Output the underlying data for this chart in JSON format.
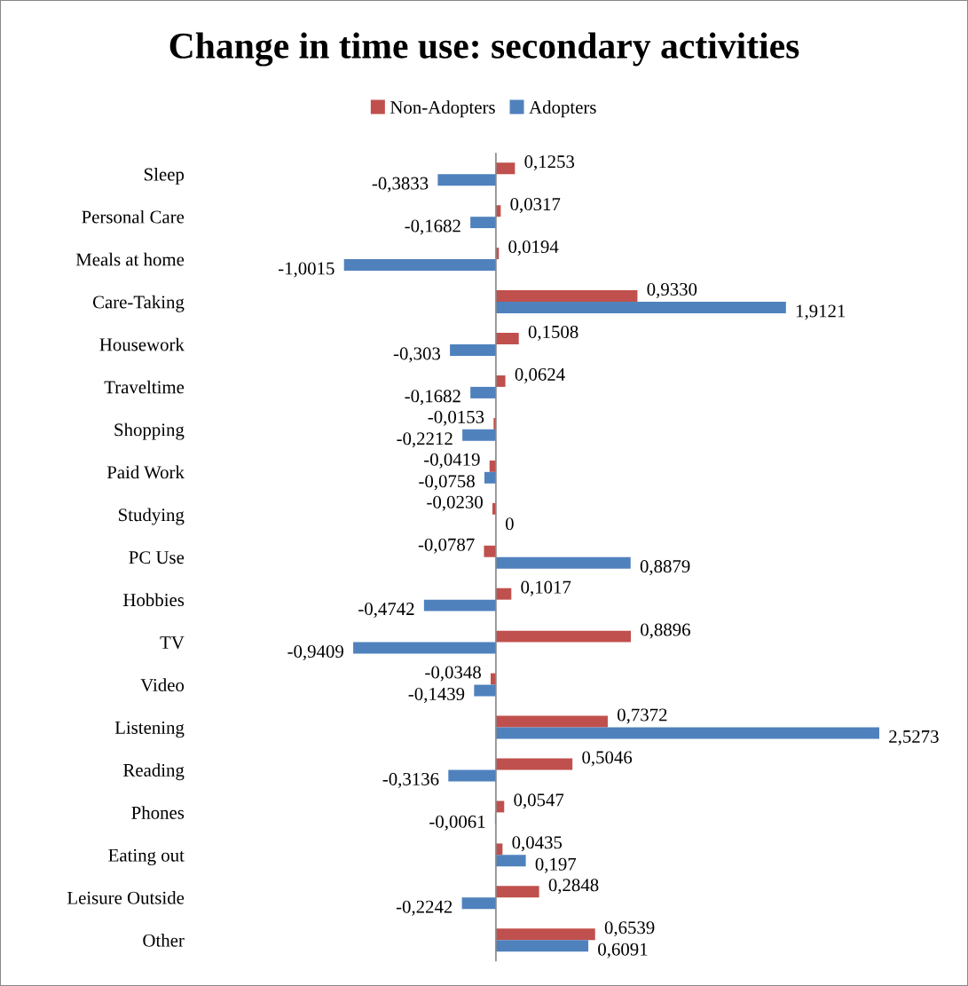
{
  "chart_data": {
    "type": "bar",
    "orientation": "horizontal",
    "title": "Change in time use: secondary activities",
    "categories": [
      "Sleep",
      "Personal Care",
      "Meals at home",
      "Care-Taking",
      "Housework",
      "Traveltime",
      "Shopping",
      "Paid Work",
      "Studying",
      "PC Use",
      "Hobbies",
      "TV",
      "Video",
      "Listening",
      "Reading",
      "Phones",
      "Eating out",
      "Leisure Outside",
      "Other"
    ],
    "series": [
      {
        "name": "Non-Adopters",
        "color": "#c0504d",
        "values": [
          0.1253,
          0.0317,
          0.0194,
          0.933,
          0.1508,
          0.0624,
          -0.0153,
          -0.0419,
          -0.023,
          -0.0787,
          0.1017,
          0.8896,
          -0.0348,
          0.7372,
          0.5046,
          0.0547,
          0.0435,
          0.2848,
          0.6539
        ],
        "value_labels": [
          "0,1253",
          "0,0317",
          "0,0194",
          "0,9330",
          "0,1508",
          "0,0624",
          "-0,0153",
          "-0,0419",
          "-0,0230",
          "-0,0787",
          "0,1017",
          "0,8896",
          "-0,0348",
          "0,7372",
          "0,5046",
          "0,0547",
          "0,0435",
          "0,2848",
          "0,6539"
        ]
      },
      {
        "name": "Adopters",
        "color": "#4f81bd",
        "values": [
          -0.3833,
          -0.1682,
          -1.0015,
          1.9121,
          -0.303,
          -0.1682,
          -0.2212,
          -0.0758,
          0,
          0.8879,
          -0.4742,
          -0.9409,
          -0.1439,
          2.5273,
          -0.3136,
          -0.0061,
          0.197,
          -0.2242,
          0.6091
        ],
        "value_labels": [
          "-0,3833",
          "-0,1682",
          "-1,0015",
          "1,9121",
          "-0,303",
          "-0,1682",
          "-0,2212",
          "-0,0758",
          "0",
          "0,8879",
          "-0,4742",
          "-0,9409",
          "-0,1439",
          "2,5273",
          "-0,3136",
          "-0,0061",
          "0,197",
          "-0,2242",
          "0,6091"
        ]
      }
    ],
    "tick_labels": "y",
    "legend": "top",
    "grid": false
  }
}
